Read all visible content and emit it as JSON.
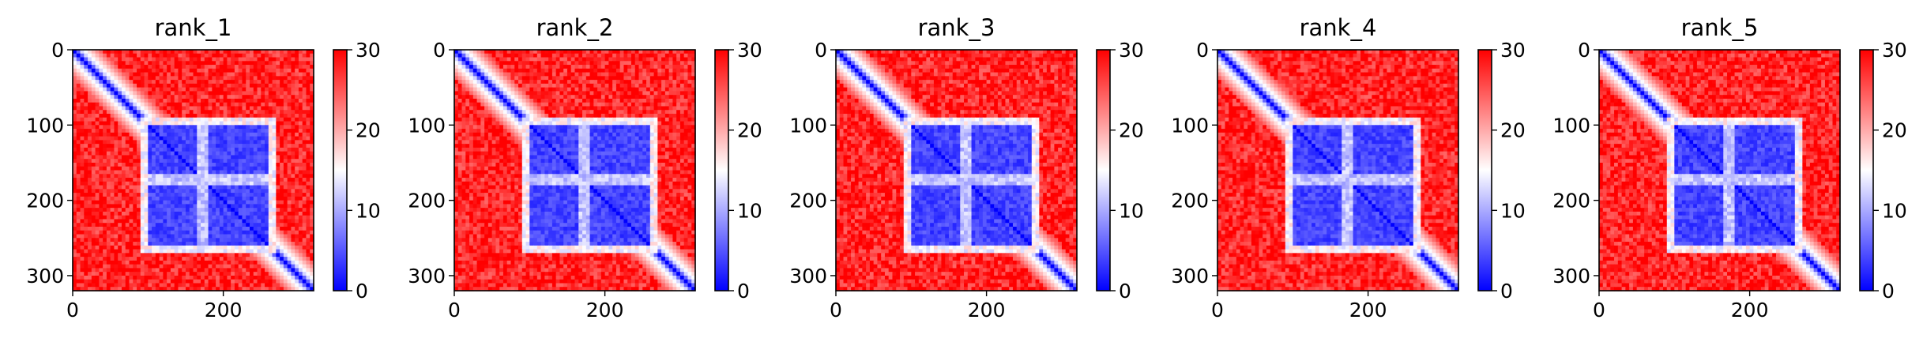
{
  "chart_data": [
    {
      "type": "heatmap",
      "title": "rank_1",
      "xlabel": "",
      "ylabel": "",
      "x_range": [
        0,
        320
      ],
      "y_range": [
        0,
        320
      ],
      "x_ticks": [
        0,
        200
      ],
      "y_ticks": [
        0,
        100,
        200,
        300
      ],
      "colorbar": {
        "range": [
          0,
          30
        ],
        "ticks": [
          0,
          10,
          20,
          30
        ],
        "colors": [
          "#0000ff",
          "#ffffff",
          "#ff0000"
        ]
      },
      "description_values": {
        "low_block": [
          90,
          270
        ],
        "diagonal_value": 0,
        "background_value": 30,
        "low_band_rows": [
          165,
          180
        ]
      }
    },
    {
      "type": "heatmap",
      "title": "rank_2",
      "xlabel": "",
      "ylabel": "",
      "x_range": [
        0,
        320
      ],
      "y_range": [
        0,
        320
      ],
      "x_ticks": [
        0,
        200
      ],
      "y_ticks": [
        0,
        100,
        200,
        300
      ],
      "colorbar": {
        "range": [
          0,
          30
        ],
        "ticks": [
          0,
          10,
          20,
          30
        ],
        "colors": [
          "#0000ff",
          "#ffffff",
          "#ff0000"
        ]
      },
      "description_values": {
        "low_block": [
          90,
          270
        ],
        "diagonal_value": 0,
        "background_value": 30,
        "low_band_rows": [
          165,
          180
        ]
      }
    },
    {
      "type": "heatmap",
      "title": "rank_3",
      "xlabel": "",
      "ylabel": "",
      "x_range": [
        0,
        320
      ],
      "y_range": [
        0,
        320
      ],
      "x_ticks": [
        0,
        200
      ],
      "y_ticks": [
        0,
        100,
        200,
        300
      ],
      "colorbar": {
        "range": [
          0,
          30
        ],
        "ticks": [
          0,
          10,
          20,
          30
        ],
        "colors": [
          "#0000ff",
          "#ffffff",
          "#ff0000"
        ]
      },
      "description_values": {
        "low_block": [
          90,
          270
        ],
        "diagonal_value": 0,
        "background_value": 30,
        "low_band_rows": [
          165,
          180
        ]
      }
    },
    {
      "type": "heatmap",
      "title": "rank_4",
      "xlabel": "",
      "ylabel": "",
      "x_range": [
        0,
        320
      ],
      "y_range": [
        0,
        320
      ],
      "x_ticks": [
        0,
        200
      ],
      "y_ticks": [
        0,
        100,
        200,
        300
      ],
      "colorbar": {
        "range": [
          0,
          30
        ],
        "ticks": [
          0,
          10,
          20,
          30
        ],
        "colors": [
          "#0000ff",
          "#ffffff",
          "#ff0000"
        ]
      },
      "description_values": {
        "low_block": [
          90,
          270
        ],
        "diagonal_value": 0,
        "background_value": 30,
        "low_band_rows": [
          165,
          180
        ]
      }
    },
    {
      "type": "heatmap",
      "title": "rank_5",
      "xlabel": "",
      "ylabel": "",
      "x_range": [
        0,
        320
      ],
      "y_range": [
        0,
        320
      ],
      "x_ticks": [
        0,
        200
      ],
      "y_ticks": [
        0,
        100,
        200,
        300
      ],
      "colorbar": {
        "range": [
          0,
          30
        ],
        "ticks": [
          0,
          10,
          20,
          30
        ],
        "colors": [
          "#0000ff",
          "#ffffff",
          "#ff0000"
        ]
      },
      "description_values": {
        "low_block": [
          90,
          270
        ],
        "diagonal_value": 0,
        "background_value": 30,
        "low_band_rows": [
          165,
          180
        ]
      }
    }
  ]
}
